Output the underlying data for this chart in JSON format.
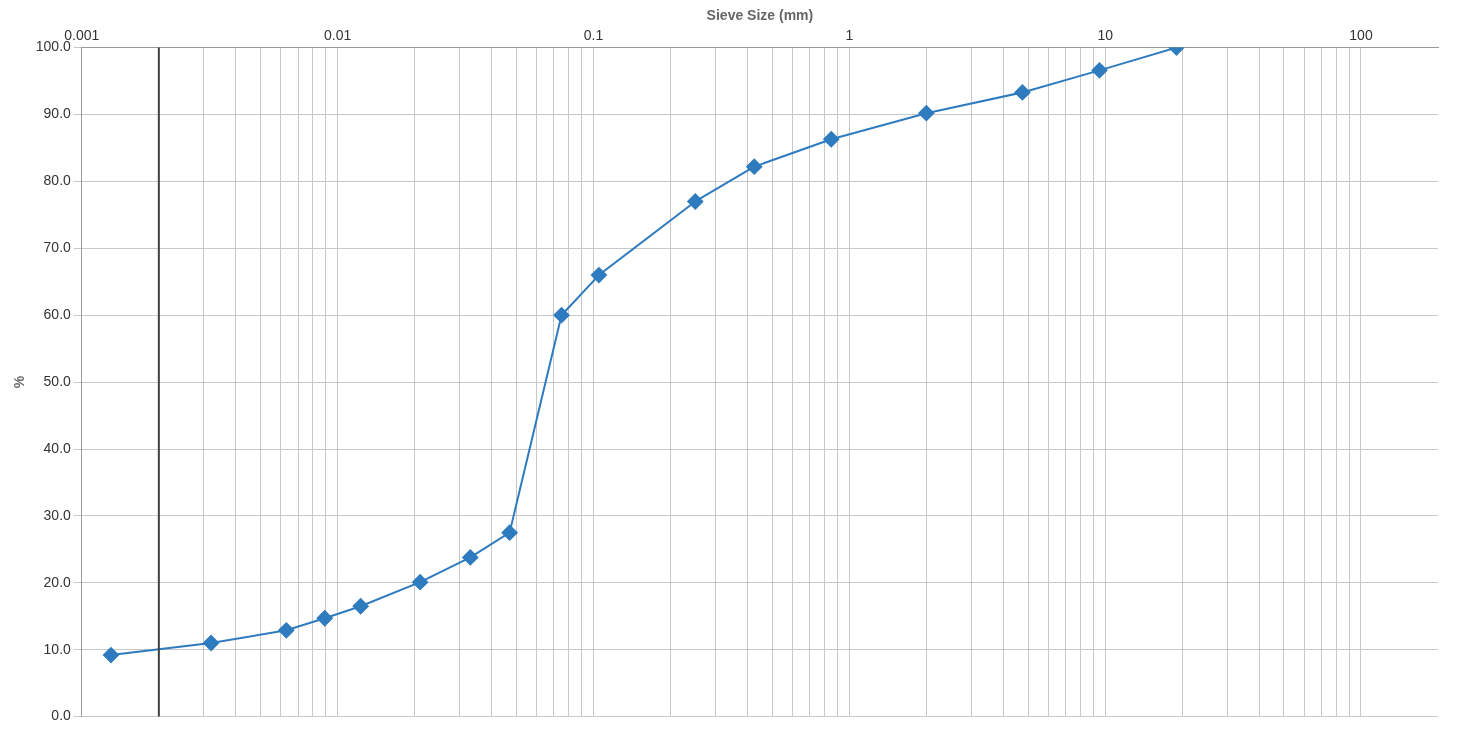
{
  "chart_data": {
    "type": "line",
    "xlabel": "Sieve Size (mm)",
    "ylabel": "%",
    "log": "x",
    "grid": true,
    "marker": "diamond",
    "line_style": "solid",
    "x": [
      0.0013,
      0.0032,
      0.0063,
      0.0089,
      0.0123,
      0.021,
      0.033,
      0.047,
      0.075,
      0.105,
      0.25,
      0.425,
      0.85,
      2.0,
      4.75,
      9.5,
      19
    ],
    "series": [
      {
        "color": "#2e7bbf",
        "values": [
          9.2,
          11.0,
          12.9,
          14.7,
          16.5,
          20.1,
          23.8,
          27.5,
          60.0,
          66.0,
          77.0,
          82.2,
          86.3,
          90.2,
          93.3,
          96.6,
          100.0
        ]
      }
    ],
    "xlim": [
      0.001,
      200
    ],
    "xticks": [
      0.001,
      {
        "value": 0.002,
        "label": null
      },
      {
        "value": 0.003,
        "label": null
      },
      {
        "value": 0.004,
        "label": null
      },
      {
        "value": 0.005,
        "label": null
      },
      {
        "value": 0.006,
        "label": null
      },
      {
        "value": 0.007,
        "label": null
      },
      {
        "value": 0.008,
        "label": null
      },
      {
        "value": 0.009,
        "label": null
      },
      0.01,
      {
        "value": 0.02,
        "label": null
      },
      {
        "value": 0.03,
        "label": null
      },
      {
        "value": 0.04,
        "label": null
      },
      {
        "value": 0.05,
        "label": null
      },
      {
        "value": 0.06,
        "label": null
      },
      {
        "value": 0.07,
        "label": null
      },
      {
        "value": 0.08,
        "label": null
      },
      {
        "value": 0.09,
        "label": null
      },
      0.1,
      {
        "value": 0.2,
        "label": null
      },
      {
        "value": 0.3,
        "label": null
      },
      {
        "value": 0.4,
        "label": null
      },
      {
        "value": 0.5,
        "label": null
      },
      {
        "value": 0.6,
        "label": null
      },
      {
        "value": 0.7,
        "label": null
      },
      {
        "value": 0.8,
        "label": null
      },
      {
        "value": 0.9,
        "label": null
      },
      1,
      {
        "value": 2,
        "label": null
      },
      {
        "value": 3,
        "label": null
      },
      {
        "value": 4,
        "label": null
      },
      {
        "value": 5,
        "label": null
      },
      {
        "value": 6,
        "label": null
      },
      {
        "value": 7,
        "label": null
      },
      {
        "value": 8,
        "label": null
      },
      {
        "value": 9,
        "label": null
      },
      10,
      {
        "value": 20,
        "label": null
      },
      {
        "value": 30,
        "label": null
      },
      {
        "value": 40,
        "label": null
      },
      {
        "value": 50,
        "label": null
      },
      {
        "value": 60,
        "label": null
      },
      {
        "value": 70,
        "label": null
      },
      {
        "value": 80,
        "label": null
      },
      {
        "value": 90,
        "label": null
      },
      100
    ],
    "ylim": [
      0,
      100
    ],
    "yticks": [
      {
        "value": 0,
        "label": "0.0"
      },
      {
        "value": 10,
        "label": "10.0"
      },
      {
        "value": 20,
        "label": "20.0"
      },
      {
        "value": 30,
        "label": "30.0"
      },
      {
        "value": 40,
        "label": "40.0"
      },
      {
        "value": 50,
        "label": "50.0"
      },
      {
        "value": 60,
        "label": "60.0"
      },
      {
        "value": 70,
        "label": "70.0"
      },
      {
        "value": 80,
        "label": "80.0"
      },
      {
        "value": 90,
        "label": "90.0"
      },
      {
        "value": 100,
        "label": "100.0"
      }
    ],
    "ref_lines": [
      {
        "axis": "x",
        "value": 0.002,
        "color": "#404040"
      }
    ]
  }
}
